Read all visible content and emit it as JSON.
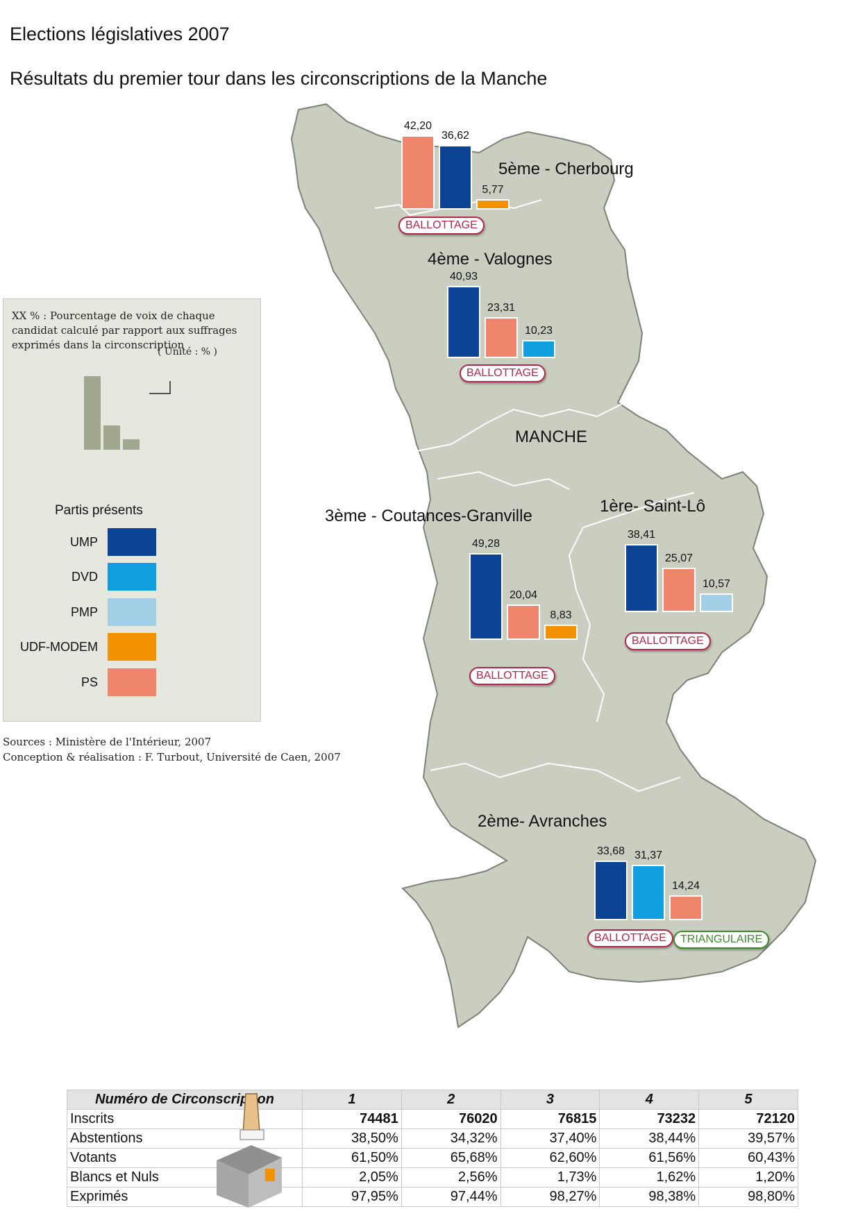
{
  "title": "Elections législatives 2007",
  "subtitle": "Résultats du premier tour dans les circonscriptions de la Manche",
  "colors": {
    "UMP": "#0c4394",
    "DVD": "#0f9ee0",
    "PMP": "#a3cfe6",
    "UDF-MODEM": "#f39200",
    "PS": "#ef856a",
    "map_fill": "#c9cec0",
    "map_border": "#7d8176"
  },
  "map": {
    "department_label": "MANCHE"
  },
  "legend": {
    "note": "XX % : Pourcentage de voix de chaque candidat calculé par rapport aux suffrages exprimés dans la circonscription",
    "unit": "( Unité : % )",
    "heading": "Partis présents",
    "parties": [
      "UMP",
      "DVD",
      "PMP",
      "UDF-MODEM",
      "PS"
    ]
  },
  "sources": {
    "line1": "Sources : Ministère de l'Intérieur, 2007",
    "line2": "Conception & réalisation : F. Turbout, Université de Caen, 2007"
  },
  "chart_data": {
    "type": "bar",
    "unit": "%",
    "districts": [
      {
        "name": "5ème - Cherbourg",
        "bars": [
          {
            "party": "PS",
            "value": 42.2,
            "label": "42,20"
          },
          {
            "party": "UMP",
            "value": 36.62,
            "label": "36,62"
          },
          {
            "party": "UDF-MODEM",
            "value": 5.77,
            "label": "5,77"
          }
        ],
        "badges": [
          "BALLOTTAGE"
        ]
      },
      {
        "name": "4ème - Valognes",
        "bars": [
          {
            "party": "UMP",
            "value": 40.93,
            "label": "40,93"
          },
          {
            "party": "PS",
            "value": 23.31,
            "label": "23,31"
          },
          {
            "party": "DVD",
            "value": 10.23,
            "label": "10,23"
          }
        ],
        "badges": [
          "BALLOTTAGE"
        ]
      },
      {
        "name": "3ème - Coutances-Granville",
        "bars": [
          {
            "party": "UMP",
            "value": 49.28,
            "label": "49,28"
          },
          {
            "party": "PS",
            "value": 20.04,
            "label": "20,04"
          },
          {
            "party": "UDF-MODEM",
            "value": 8.83,
            "label": "8,83"
          }
        ],
        "badges": [
          "BALLOTTAGE"
        ]
      },
      {
        "name": "1ère- Saint-Lô",
        "bars": [
          {
            "party": "UMP",
            "value": 38.41,
            "label": "38,41"
          },
          {
            "party": "PS",
            "value": 25.07,
            "label": "25,07"
          },
          {
            "party": "PMP",
            "value": 10.57,
            "label": "10,57"
          }
        ],
        "badges": [
          "BALLOTTAGE"
        ]
      },
      {
        "name": "2ème- Avranches",
        "bars": [
          {
            "party": "UMP",
            "value": 33.68,
            "label": "33,68"
          },
          {
            "party": "DVD",
            "value": 31.37,
            "label": "31,37"
          },
          {
            "party": "PS",
            "value": 14.24,
            "label": "14,24"
          }
        ],
        "badges": [
          "BALLOTTAGE",
          "TRIANGULAIRE"
        ]
      }
    ]
  },
  "table": {
    "header": [
      "Numéro de Circonscription",
      "1",
      "2",
      "3",
      "4",
      "5"
    ],
    "rows": [
      {
        "label": "Inscrits",
        "values": [
          "74481",
          "76020",
          "76815",
          "73232",
          "72120"
        ]
      },
      {
        "label": "Abstentions",
        "values": [
          "38,50%",
          "34,32%",
          "37,40%",
          "38,44%",
          "39,57%"
        ]
      },
      {
        "label": "Votants",
        "values": [
          "61,50%",
          "65,68%",
          "62,60%",
          "61,56%",
          "60,43%"
        ]
      },
      {
        "label": "Blancs et Nuls",
        "values": [
          "2,05%",
          "2,56%",
          "1,73%",
          "1,62%",
          "1,20%"
        ]
      },
      {
        "label": "Exprimés",
        "values": [
          "97,95%",
          "97,44%",
          "98,27%",
          "98,38%",
          "98,80%"
        ]
      }
    ]
  }
}
